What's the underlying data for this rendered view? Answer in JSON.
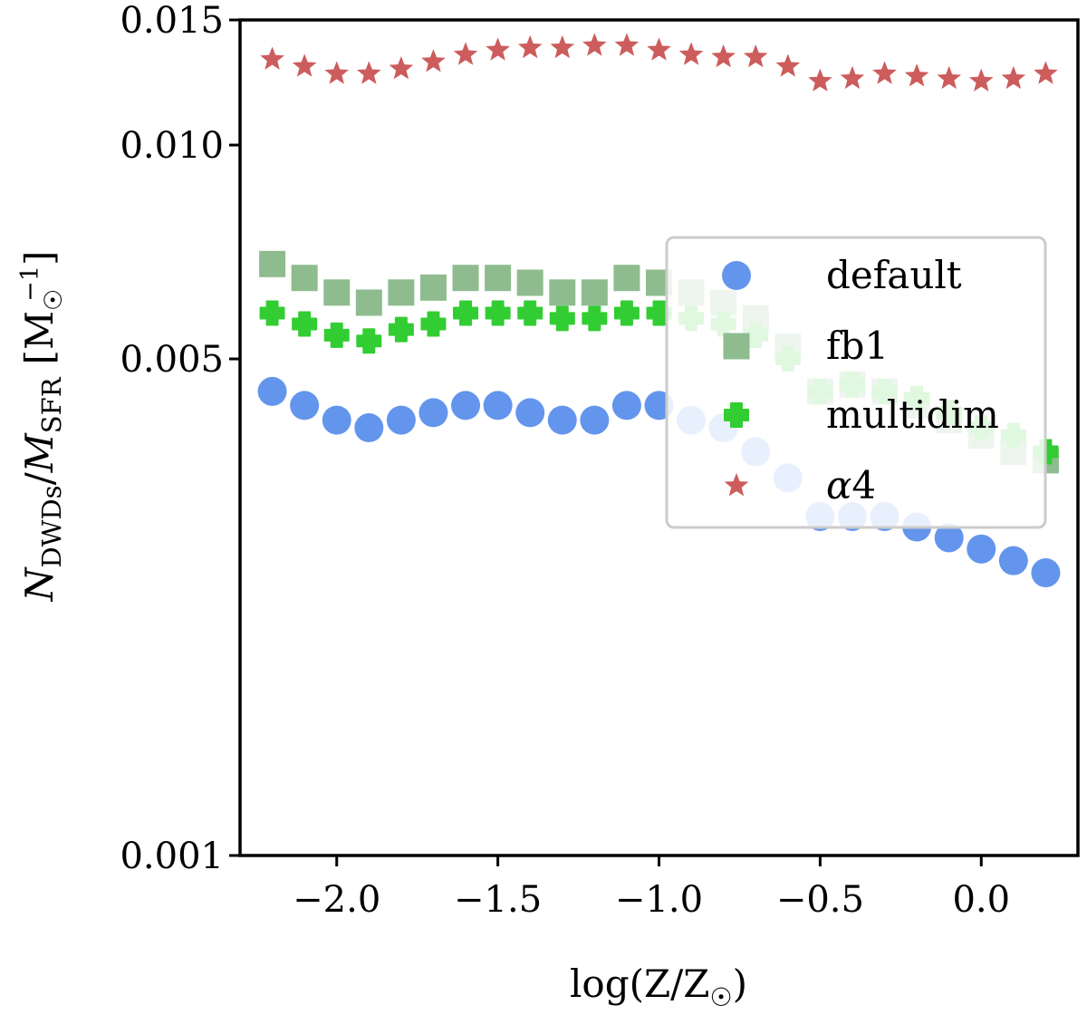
{
  "chart_data": {
    "type": "scatter",
    "title": "",
    "xlabel": "log(Z/Z☉)",
    "ylabel": "N_DWDs / M_SFR [M☉^−1]",
    "ylabel_parts": {
      "n": "N",
      "n_sub": "DWDs",
      "slash": "/",
      "m": "M",
      "m_sub": "SFR",
      "unit_open": "[M",
      "unit_sub": "☉",
      "unit_sup": "−1",
      "unit_close": "]"
    },
    "xlabel_parts": {
      "pre": "log(Z/Z",
      "sub": "☉",
      "post": ")"
    },
    "xlim": [
      -2.3,
      0.3
    ],
    "ylim": [
      0.001,
      0.015
    ],
    "yscale": "log",
    "x_ticks": [
      -2.0,
      -1.5,
      -1.0,
      -0.5,
      0.0
    ],
    "x_tick_labels": [
      "−2.0",
      "−1.5",
      "−1.0",
      "−0.5",
      "0.0"
    ],
    "y_ticks": [
      0.001,
      0.005,
      0.01,
      0.015
    ],
    "y_tick_labels": [
      "0.001",
      "0.005",
      "0.010",
      "0.015"
    ],
    "grid": false,
    "legend_position": "center-right",
    "x": [
      -2.2,
      -2.1,
      -2.0,
      -1.9,
      -1.8,
      -1.7,
      -1.6,
      -1.5,
      -1.4,
      -1.3,
      -1.2,
      -1.1,
      -1.0,
      -0.9,
      -0.8,
      -0.7,
      -0.6,
      -0.5,
      -0.4,
      -0.3,
      -0.2,
      -0.1,
      0.0,
      0.1,
      0.2
    ],
    "series": [
      {
        "name": "default",
        "marker": "circle",
        "color": "#6495ED",
        "values": [
          0.0045,
          0.0043,
          0.0041,
          0.004,
          0.0041,
          0.0042,
          0.0043,
          0.0043,
          0.0042,
          0.0041,
          0.0041,
          0.0043,
          0.0043,
          0.0041,
          0.004,
          0.0037,
          0.0034,
          0.003,
          0.003,
          0.003,
          0.0029,
          0.0028,
          0.0027,
          0.0026,
          0.0025
        ]
      },
      {
        "name": "fb1",
        "marker": "square",
        "color": "#8FBC8F",
        "values": [
          0.0068,
          0.0065,
          0.0062,
          0.006,
          0.0062,
          0.0063,
          0.0065,
          0.0065,
          0.0064,
          0.0062,
          0.0062,
          0.0065,
          0.0064,
          0.0062,
          0.006,
          0.0057,
          0.0052,
          0.0045,
          0.0046,
          0.0045,
          0.0043,
          0.0041,
          0.0039,
          0.0037,
          0.0036
        ]
      },
      {
        "name": "multidim",
        "marker": "plus",
        "color": "#32CD32",
        "values": [
          0.0058,
          0.0056,
          0.0054,
          0.0053,
          0.0055,
          0.0056,
          0.0058,
          0.0058,
          0.0058,
          0.0057,
          0.0057,
          0.0058,
          0.0058,
          0.0057,
          0.0056,
          0.0054,
          0.005,
          0.0045,
          0.0046,
          0.0045,
          0.0044,
          0.0042,
          0.004,
          0.0039,
          0.0037
        ]
      },
      {
        "name": "α4",
        "marker": "star",
        "color": "#CD5C5C",
        "values": [
          0.0132,
          0.0129,
          0.0126,
          0.0126,
          0.0128,
          0.0131,
          0.0134,
          0.0136,
          0.0137,
          0.0137,
          0.0138,
          0.0138,
          0.0136,
          0.0134,
          0.0133,
          0.0133,
          0.0129,
          0.0123,
          0.0124,
          0.0126,
          0.0125,
          0.0124,
          0.0123,
          0.0124,
          0.0126
        ]
      }
    ],
    "legend_labels": {
      "default": "default",
      "fb1": "fb1",
      "multidim": "multidim",
      "alpha_prefix": "α",
      "alpha_suffix": "4"
    }
  }
}
